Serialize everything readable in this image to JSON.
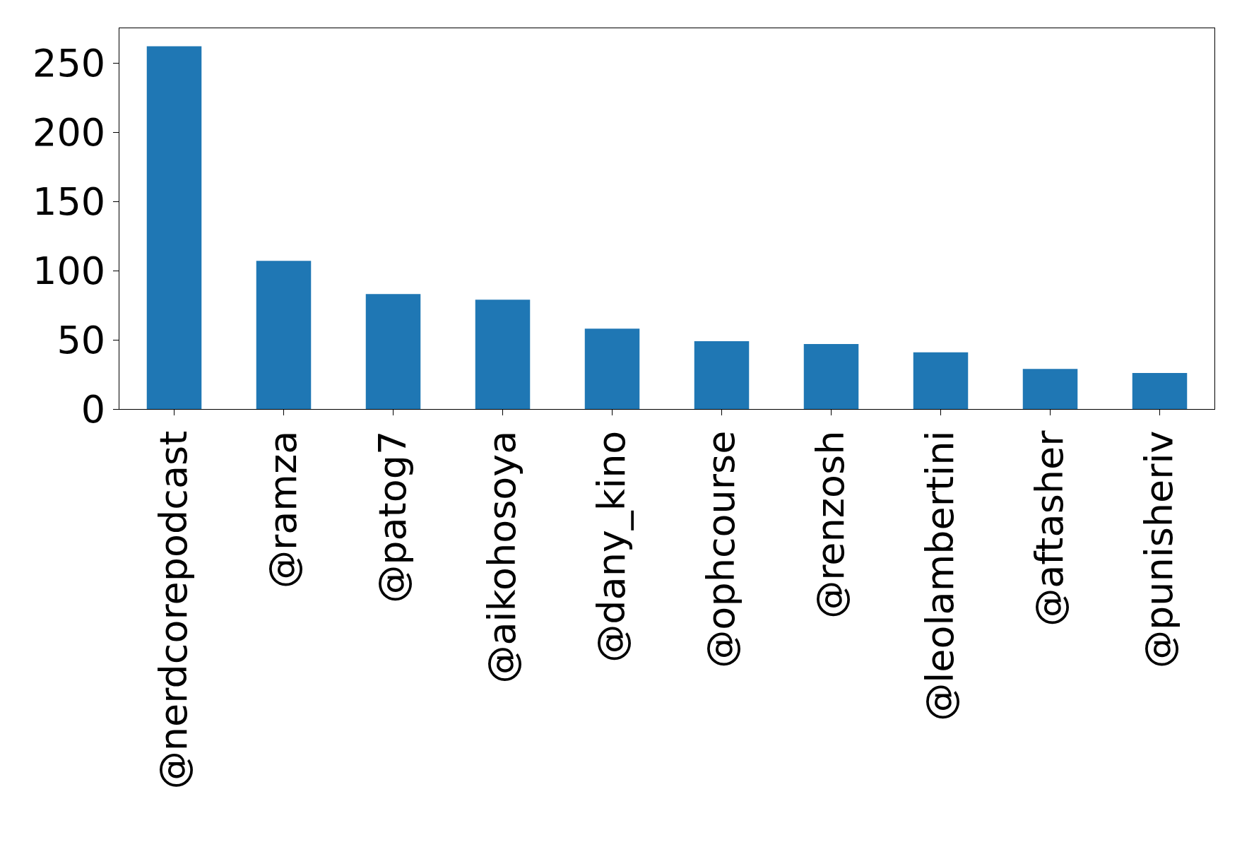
{
  "chart_data": {
    "type": "bar",
    "categories": [
      "@nerdcorepodcast",
      "@ramza",
      "@patog7",
      "@aikohosoya",
      "@dany_kino",
      "@ophcourse",
      "@renzosh",
      "@leolambertini",
      "@aftasher",
      "@punisheriv"
    ],
    "values": [
      262,
      107,
      83,
      79,
      58,
      49,
      47,
      41,
      29,
      26
    ],
    "color": "#1f77b4",
    "ylim": [
      0,
      275
    ],
    "yticks": [
      0,
      50,
      100,
      150,
      200,
      250
    ]
  }
}
